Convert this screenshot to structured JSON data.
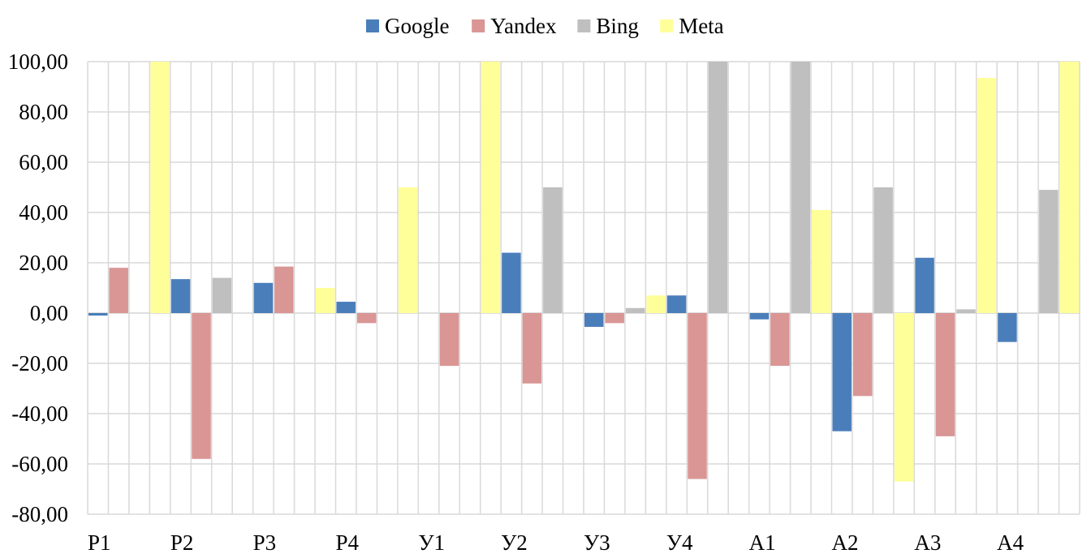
{
  "chart_data": {
    "type": "bar",
    "categories": [
      "Р1",
      "Р2",
      "Р3",
      "Р4",
      "У1",
      "У2",
      "У3",
      "У4",
      "А1",
      "А2",
      "А3",
      "А4"
    ],
    "series": [
      {
        "name": "Google",
        "color": "#4a7ebb",
        "values": [
          -1,
          13.5,
          12,
          4.5,
          0,
          24,
          -5.5,
          7,
          -2.5,
          -47,
          22,
          -11.5
        ]
      },
      {
        "name": "Yandex",
        "color": "#d99694",
        "values": [
          18,
          -58,
          18.5,
          -4,
          -21,
          -28,
          -4,
          -66,
          -21,
          -33,
          -49,
          0
        ]
      },
      {
        "name": "Bing",
        "color": "#bfbfbf",
        "values": [
          0,
          14,
          0,
          0,
          0,
          50,
          2,
          100,
          100,
          50,
          1.5,
          49
        ]
      },
      {
        "name": "Meta",
        "color": "#ffff99",
        "values": [
          100,
          0,
          10,
          50,
          100,
          0,
          7,
          0,
          41,
          -67,
          93.5,
          100
        ]
      }
    ],
    "y_ticks": [
      "-80,00",
      "-60,00",
      "-40,00",
      "-20,00",
      "0,00",
      "20,00",
      "40,00",
      "60,00",
      "80,00",
      "100,00"
    ],
    "ylim": [
      -80,
      100
    ],
    "xlabel": "",
    "ylabel": "",
    "title": "",
    "grid": true,
    "legend_position": "top-center"
  }
}
